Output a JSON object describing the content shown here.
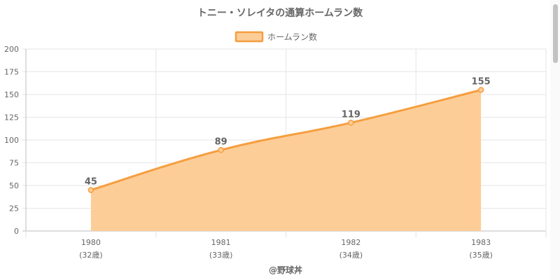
{
  "chart_data": {
    "type": "area",
    "title": "トニー・ソレイタの通算ホームラン数",
    "categories": [
      "1980",
      "1981",
      "1982",
      "1983"
    ],
    "sublabels": [
      "(32歳)",
      "(33歳)",
      "(34歳)",
      "(35歳)"
    ],
    "series": [
      {
        "name": "ホームラン数",
        "values": [
          45,
          89,
          119,
          155
        ]
      }
    ],
    "ylim": [
      0,
      200
    ],
    "yticks": [
      0,
      25,
      50,
      75,
      100,
      125,
      150,
      175,
      200
    ],
    "grid": true,
    "legend": "top-center",
    "data_labels": true,
    "colors": {
      "line": "#f59e3f",
      "fill": "#fdcd98",
      "grid": "#e6e6e6",
      "axis": "#bdbdbd"
    },
    "credit": "@野球丼"
  }
}
